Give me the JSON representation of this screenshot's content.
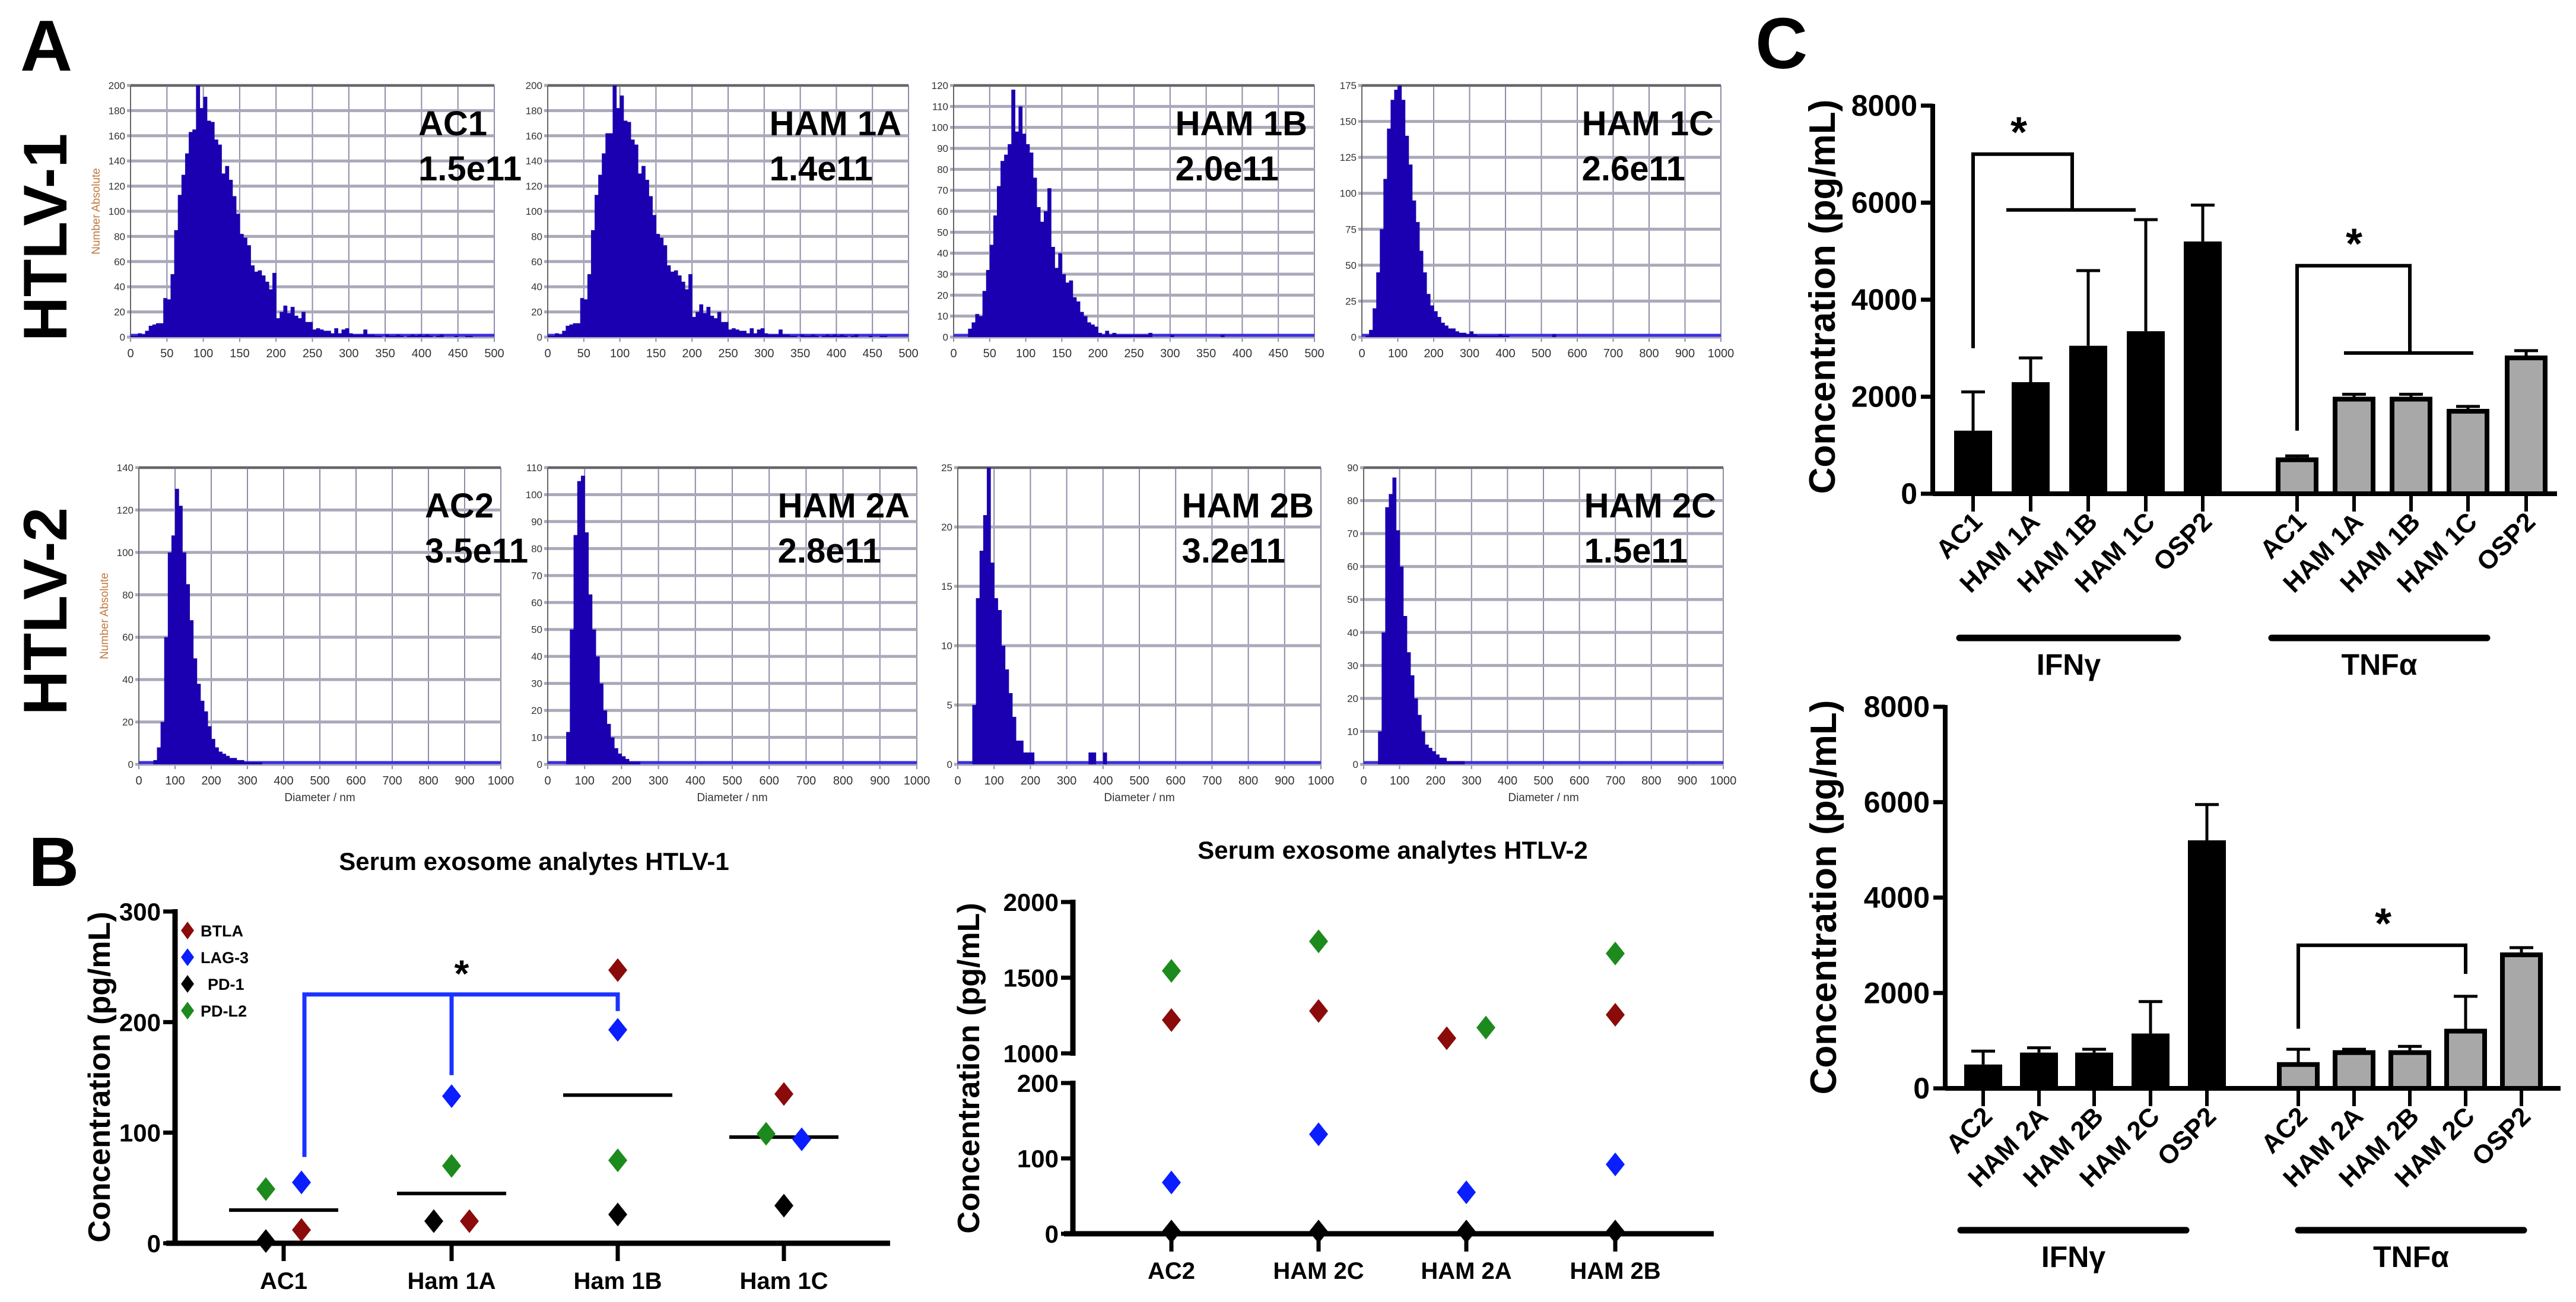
{
  "panel_labels": {
    "a": "A",
    "b": "B",
    "c": "C"
  },
  "row_labels": [
    "HTLV-1",
    "HTLV-2"
  ],
  "colors": {
    "histogram": "#1a00b0",
    "BTLA": "#8b0b0b",
    "LAG-3": "#0a1eff",
    "PD-1": "#000000",
    "PD-L2": "#1d8a1d",
    "IFN": "#000000",
    "TNF": "#a8a8a8",
    "bracket_b": "#1a34ff"
  },
  "chart_data": [
    {
      "type": "bar",
      "panel": "A",
      "row": "HTLV-1",
      "sample": "AC1",
      "concentration": "1.5e11",
      "ylabel": "Number Absolute",
      "xlabel": "",
      "xlim": [
        0,
        500
      ],
      "ylim": [
        0,
        200
      ],
      "xticks": [
        0,
        50,
        100,
        150,
        200,
        250,
        300,
        350,
        400,
        450,
        500
      ],
      "yticks": [
        0,
        20,
        40,
        60,
        80,
        100,
        120,
        140,
        160,
        180,
        200
      ],
      "bin_start": 0,
      "bin_width": 5,
      "counts": [
        1,
        1,
        3,
        2,
        5,
        9,
        10,
        11,
        11,
        31,
        30,
        50,
        85,
        113,
        129,
        146,
        163,
        165,
        200,
        182,
        191,
        172,
        171,
        157,
        153,
        130,
        136,
        125,
        112,
        98,
        82,
        79,
        73,
        57,
        52,
        53,
        49,
        44,
        38,
        51,
        15,
        20,
        25,
        19,
        24,
        17,
        15,
        20,
        12,
        12,
        6,
        7,
        6,
        5,
        5,
        3,
        7,
        3,
        6,
        7,
        3,
        2,
        2,
        2,
        6,
        2,
        2,
        1,
        1,
        0,
        2,
        1,
        1,
        2,
        1,
        0,
        1,
        2,
        1,
        2,
        1,
        2,
        1,
        0,
        1,
        2,
        0,
        0,
        0,
        1,
        0,
        0,
        1,
        1,
        0,
        0,
        0,
        0,
        0,
        0
      ]
    },
    {
      "type": "bar",
      "panel": "A",
      "row": "HTLV-1",
      "sample": "HAM 1A",
      "concentration": "1.4e11",
      "ylabel": "",
      "xlabel": "",
      "xlim": [
        0,
        500
      ],
      "ylim": [
        0,
        200
      ],
      "xticks": [
        0,
        50,
        100,
        150,
        200,
        250,
        300,
        350,
        400,
        450,
        500
      ],
      "yticks": [
        0,
        20,
        40,
        60,
        80,
        100,
        120,
        140,
        160,
        180,
        200
      ],
      "bin_start": 0,
      "bin_width": 5,
      "counts": [
        1,
        1,
        3,
        2,
        5,
        9,
        10,
        11,
        11,
        31,
        30,
        50,
        85,
        113,
        129,
        146,
        162,
        162,
        200,
        182,
        192,
        172,
        171,
        157,
        153,
        130,
        136,
        125,
        112,
        97,
        82,
        79,
        73,
        57,
        52,
        53,
        49,
        44,
        38,
        50,
        16,
        20,
        26,
        19,
        24,
        17,
        15,
        20,
        12,
        12,
        6,
        7,
        6,
        5,
        5,
        3,
        7,
        3,
        6,
        7,
        3,
        2,
        2,
        2,
        6,
        2,
        2,
        1,
        1,
        0,
        2,
        1,
        1,
        2,
        1,
        0,
        1,
        2,
        1,
        2,
        1,
        2,
        1,
        0,
        1,
        2,
        0,
        0,
        0,
        1,
        0,
        0,
        1,
        1,
        0,
        0,
        0,
        0,
        0,
        0
      ]
    },
    {
      "type": "bar",
      "panel": "A",
      "row": "HTLV-1",
      "sample": "HAM 1B",
      "concentration": "2.0e11",
      "ylabel": "",
      "xlabel": "",
      "xlim": [
        0,
        500
      ],
      "ylim": [
        0,
        120
      ],
      "xticks": [
        0,
        50,
        100,
        150,
        200,
        250,
        300,
        350,
        400,
        450,
        500
      ],
      "yticks": [
        0,
        10,
        20,
        30,
        40,
        50,
        60,
        70,
        80,
        90,
        100,
        110,
        120
      ],
      "bin_start": 0,
      "bin_width": 5,
      "counts": [
        0,
        0,
        0,
        0,
        4,
        7,
        11,
        10,
        22,
        32,
        44,
        58,
        72,
        84,
        87,
        92,
        118,
        98,
        110,
        97,
        92,
        88,
        76,
        62,
        55,
        60,
        71,
        43,
        33,
        40,
        30,
        26,
        27,
        19,
        17,
        12,
        10,
        7,
        6,
        5,
        2,
        1,
        3,
        1,
        2,
        1,
        1,
        1,
        1,
        1,
        1,
        1,
        1,
        1,
        2,
        0,
        0,
        0,
        0,
        0,
        1,
        0,
        0,
        0,
        0,
        0,
        0,
        0,
        0,
        0,
        0,
        0,
        0,
        0,
        1
      ]
    },
    {
      "type": "bar",
      "panel": "A",
      "row": "HTLV-1",
      "sample": "HAM 1C",
      "concentration": "2.6e11",
      "ylabel": "",
      "xlabel": "",
      "xlim": [
        0,
        1000
      ],
      "ylim": [
        0,
        175
      ],
      "xticks": [
        0,
        100,
        200,
        300,
        400,
        500,
        600,
        700,
        800,
        900,
        1000
      ],
      "yticks": [
        0,
        25,
        50,
        75,
        100,
        125,
        150,
        175
      ],
      "bin_start": 0,
      "bin_width": 10,
      "counts": [
        0,
        1,
        5,
        20,
        45,
        75,
        110,
        145,
        165,
        172,
        175,
        165,
        140,
        120,
        95,
        80,
        60,
        45,
        30,
        22,
        18,
        14,
        10,
        8,
        6,
        6,
        4,
        3,
        3,
        2,
        4,
        2,
        1,
        1,
        1,
        1,
        1,
        1,
        2,
        1,
        1,
        0,
        0,
        0,
        0,
        0,
        0,
        0,
        0,
        0,
        0,
        0,
        0,
        2
      ]
    },
    {
      "type": "bar",
      "panel": "A",
      "row": "HTLV-2",
      "sample": "AC2",
      "concentration": "3.5e11",
      "ylabel": "Number Absolute",
      "xlabel": "Diameter / nm",
      "xlim": [
        0,
        1000
      ],
      "ylim": [
        0,
        140
      ],
      "xticks": [
        0,
        100,
        200,
        300,
        400,
        500,
        600,
        700,
        800,
        900,
        1000
      ],
      "yticks": [
        0,
        20,
        40,
        60,
        80,
        100,
        120,
        140
      ],
      "bin_start": 0,
      "bin_width": 10,
      "counts": [
        0,
        0,
        0,
        0,
        2,
        8,
        20,
        60,
        100,
        108,
        130,
        122,
        100,
        85,
        68,
        50,
        38,
        30,
        25,
        18,
        12,
        8,
        6,
        5,
        4,
        3,
        3,
        2,
        2,
        1,
        1,
        1,
        1,
        1
      ]
    },
    {
      "type": "bar",
      "panel": "A",
      "row": "HTLV-2",
      "sample": "HAM 2A",
      "concentration": "2.8e11",
      "ylabel": "",
      "xlabel": "Diameter / nm",
      "xlim": [
        0,
        1000
      ],
      "ylim": [
        0,
        110
      ],
      "xticks": [
        0,
        100,
        200,
        300,
        400,
        500,
        600,
        700,
        800,
        900,
        1000
      ],
      "yticks": [
        0,
        10,
        20,
        30,
        40,
        50,
        60,
        70,
        80,
        90,
        100,
        110
      ],
      "bin_start": 0,
      "bin_width": 10,
      "counts": [
        0,
        0,
        0,
        0,
        0,
        12,
        50,
        85,
        105,
        107,
        86,
        63,
        50,
        40,
        30,
        20,
        15,
        10,
        6,
        4,
        3,
        2,
        1,
        1,
        1
      ]
    },
    {
      "type": "bar",
      "panel": "A",
      "row": "HTLV-2",
      "sample": "HAM 2B",
      "concentration": "3.2e11",
      "ylabel": "",
      "xlabel": "Diameter / nm",
      "xlim": [
        0,
        1000
      ],
      "ylim": [
        0,
        25
      ],
      "xticks": [
        0,
        100,
        200,
        300,
        400,
        500,
        600,
        700,
        800,
        900,
        1000
      ],
      "yticks": [
        0,
        5,
        10,
        15,
        20,
        25
      ],
      "bin_start": 0,
      "bin_width": 10,
      "counts": [
        0,
        0,
        0,
        0,
        5,
        14,
        18,
        21,
        25,
        17,
        14,
        13,
        10,
        8,
        6,
        4,
        2,
        2,
        1,
        1,
        1,
        0,
        0,
        0,
        0,
        0,
        0,
        0,
        0,
        0,
        0,
        0,
        0,
        0,
        0,
        0,
        1,
        1,
        0,
        0,
        1
      ]
    },
    {
      "type": "bar",
      "panel": "A",
      "row": "HTLV-2",
      "sample": "HAM 2C",
      "concentration": "1.5e11",
      "ylabel": "",
      "xlabel": "Diameter / nm",
      "xlim": [
        0,
        1000
      ],
      "ylim": [
        0,
        90
      ],
      "xticks": [
        0,
        100,
        200,
        300,
        400,
        500,
        600,
        700,
        800,
        900,
        1000
      ],
      "yticks": [
        0,
        10,
        20,
        30,
        40,
        50,
        60,
        70,
        80,
        90
      ],
      "bin_start": 0,
      "bin_width": 10,
      "counts": [
        0,
        0,
        0,
        0,
        10,
        40,
        78,
        82,
        87,
        71,
        60,
        45,
        34,
        27,
        20,
        15,
        10,
        6,
        5,
        4,
        3,
        2,
        2,
        1,
        1,
        1,
        1,
        1
      ]
    },
    {
      "type": "scatter",
      "panel": "B",
      "title": "Serum exosome analytes HTLV-1",
      "ylabel": "Concentration (pg/mL)",
      "ylim": [
        0,
        300
      ],
      "yticks": [
        0,
        100,
        200,
        300
      ],
      "categories": [
        "AC1",
        "Ham 1A",
        "Ham 1B",
        "Ham 1C"
      ],
      "series": [
        {
          "name": "BTLA",
          "values": [
            12,
            20,
            247,
            135
          ]
        },
        {
          "name": "LAG-3",
          "values": [
            55,
            133,
            193,
            94
          ]
        },
        {
          "name": "PD-1",
          "values": [
            2,
            20,
            26,
            34
          ]
        },
        {
          "name": "PD-L2",
          "values": [
            49,
            70,
            75,
            99
          ]
        }
      ],
      "medians": [
        30,
        45,
        134,
        96
      ],
      "significance": "*",
      "legend": "top-left"
    },
    {
      "type": "scatter",
      "panel": "B",
      "title": "Serum exosome analytes HTLV-2",
      "ylabel": "Concentration (pg/mL)",
      "ylim": [
        0,
        2000
      ],
      "axis_break": [
        200,
        1000
      ],
      "yticks": [
        0,
        100,
        200,
        1000,
        1500,
        2000
      ],
      "categories": [
        "AC2",
        "HAM 2C",
        "HAM 2A",
        "HAM 2B"
      ],
      "series": [
        {
          "name": "BTLA",
          "values": [
            1220,
            1280,
            1100,
            1255
          ]
        },
        {
          "name": "LAG-3",
          "values": [
            68,
            132,
            55,
            92
          ]
        },
        {
          "name": "PD-1",
          "values": [
            3,
            3,
            3,
            3
          ]
        },
        {
          "name": "PD-L2",
          "values": [
            1545,
            1740,
            1170,
            1660
          ]
        }
      ]
    },
    {
      "type": "bar",
      "panel": "C",
      "ylabel": "Concentration (pg/mL)",
      "ylim": [
        0,
        8000
      ],
      "yticks": [
        0,
        2000,
        4000,
        6000,
        8000
      ],
      "significance": "*",
      "groups": [
        {
          "name": "IFNγ",
          "categories": [
            "AC1",
            "HAM 1A",
            "HAM 1B",
            "HAM 1C",
            "OSP2"
          ],
          "values": [
            1300,
            2300,
            3050,
            3350,
            5200
          ],
          "error_upper": [
            2100,
            2800,
            4600,
            5650,
            5950
          ]
        },
        {
          "name": "TNFα",
          "categories": [
            "AC1",
            "HAM 1A",
            "HAM 1B",
            "HAM 1C",
            "OSP2"
          ],
          "values": [
            700,
            1950,
            1950,
            1700,
            2800
          ],
          "error_upper": [
            780,
            2050,
            2050,
            1800,
            2950
          ]
        }
      ]
    },
    {
      "type": "bar",
      "panel": "C",
      "ylabel": "Concentration (pg/mL)",
      "ylim": [
        0,
        8000
      ],
      "yticks": [
        0,
        2000,
        4000,
        6000,
        8000
      ],
      "significance": "*",
      "groups": [
        {
          "name": "IFNγ",
          "categories": [
            "AC2",
            "HAM 2A",
            "HAM 2B",
            "HAM 2C",
            "OSP2"
          ],
          "values": [
            500,
            750,
            750,
            1150,
            5200
          ],
          "error_upper": [
            780,
            850,
            820,
            1820,
            5950
          ]
        },
        {
          "name": "TNFα",
          "categories": [
            "AC2",
            "HAM 2A",
            "HAM 2B",
            "HAM 2C",
            "OSP2"
          ],
          "values": [
            500,
            750,
            750,
            1200,
            2800
          ],
          "error_upper": [
            820,
            820,
            880,
            1930,
            2950
          ]
        }
      ]
    }
  ]
}
